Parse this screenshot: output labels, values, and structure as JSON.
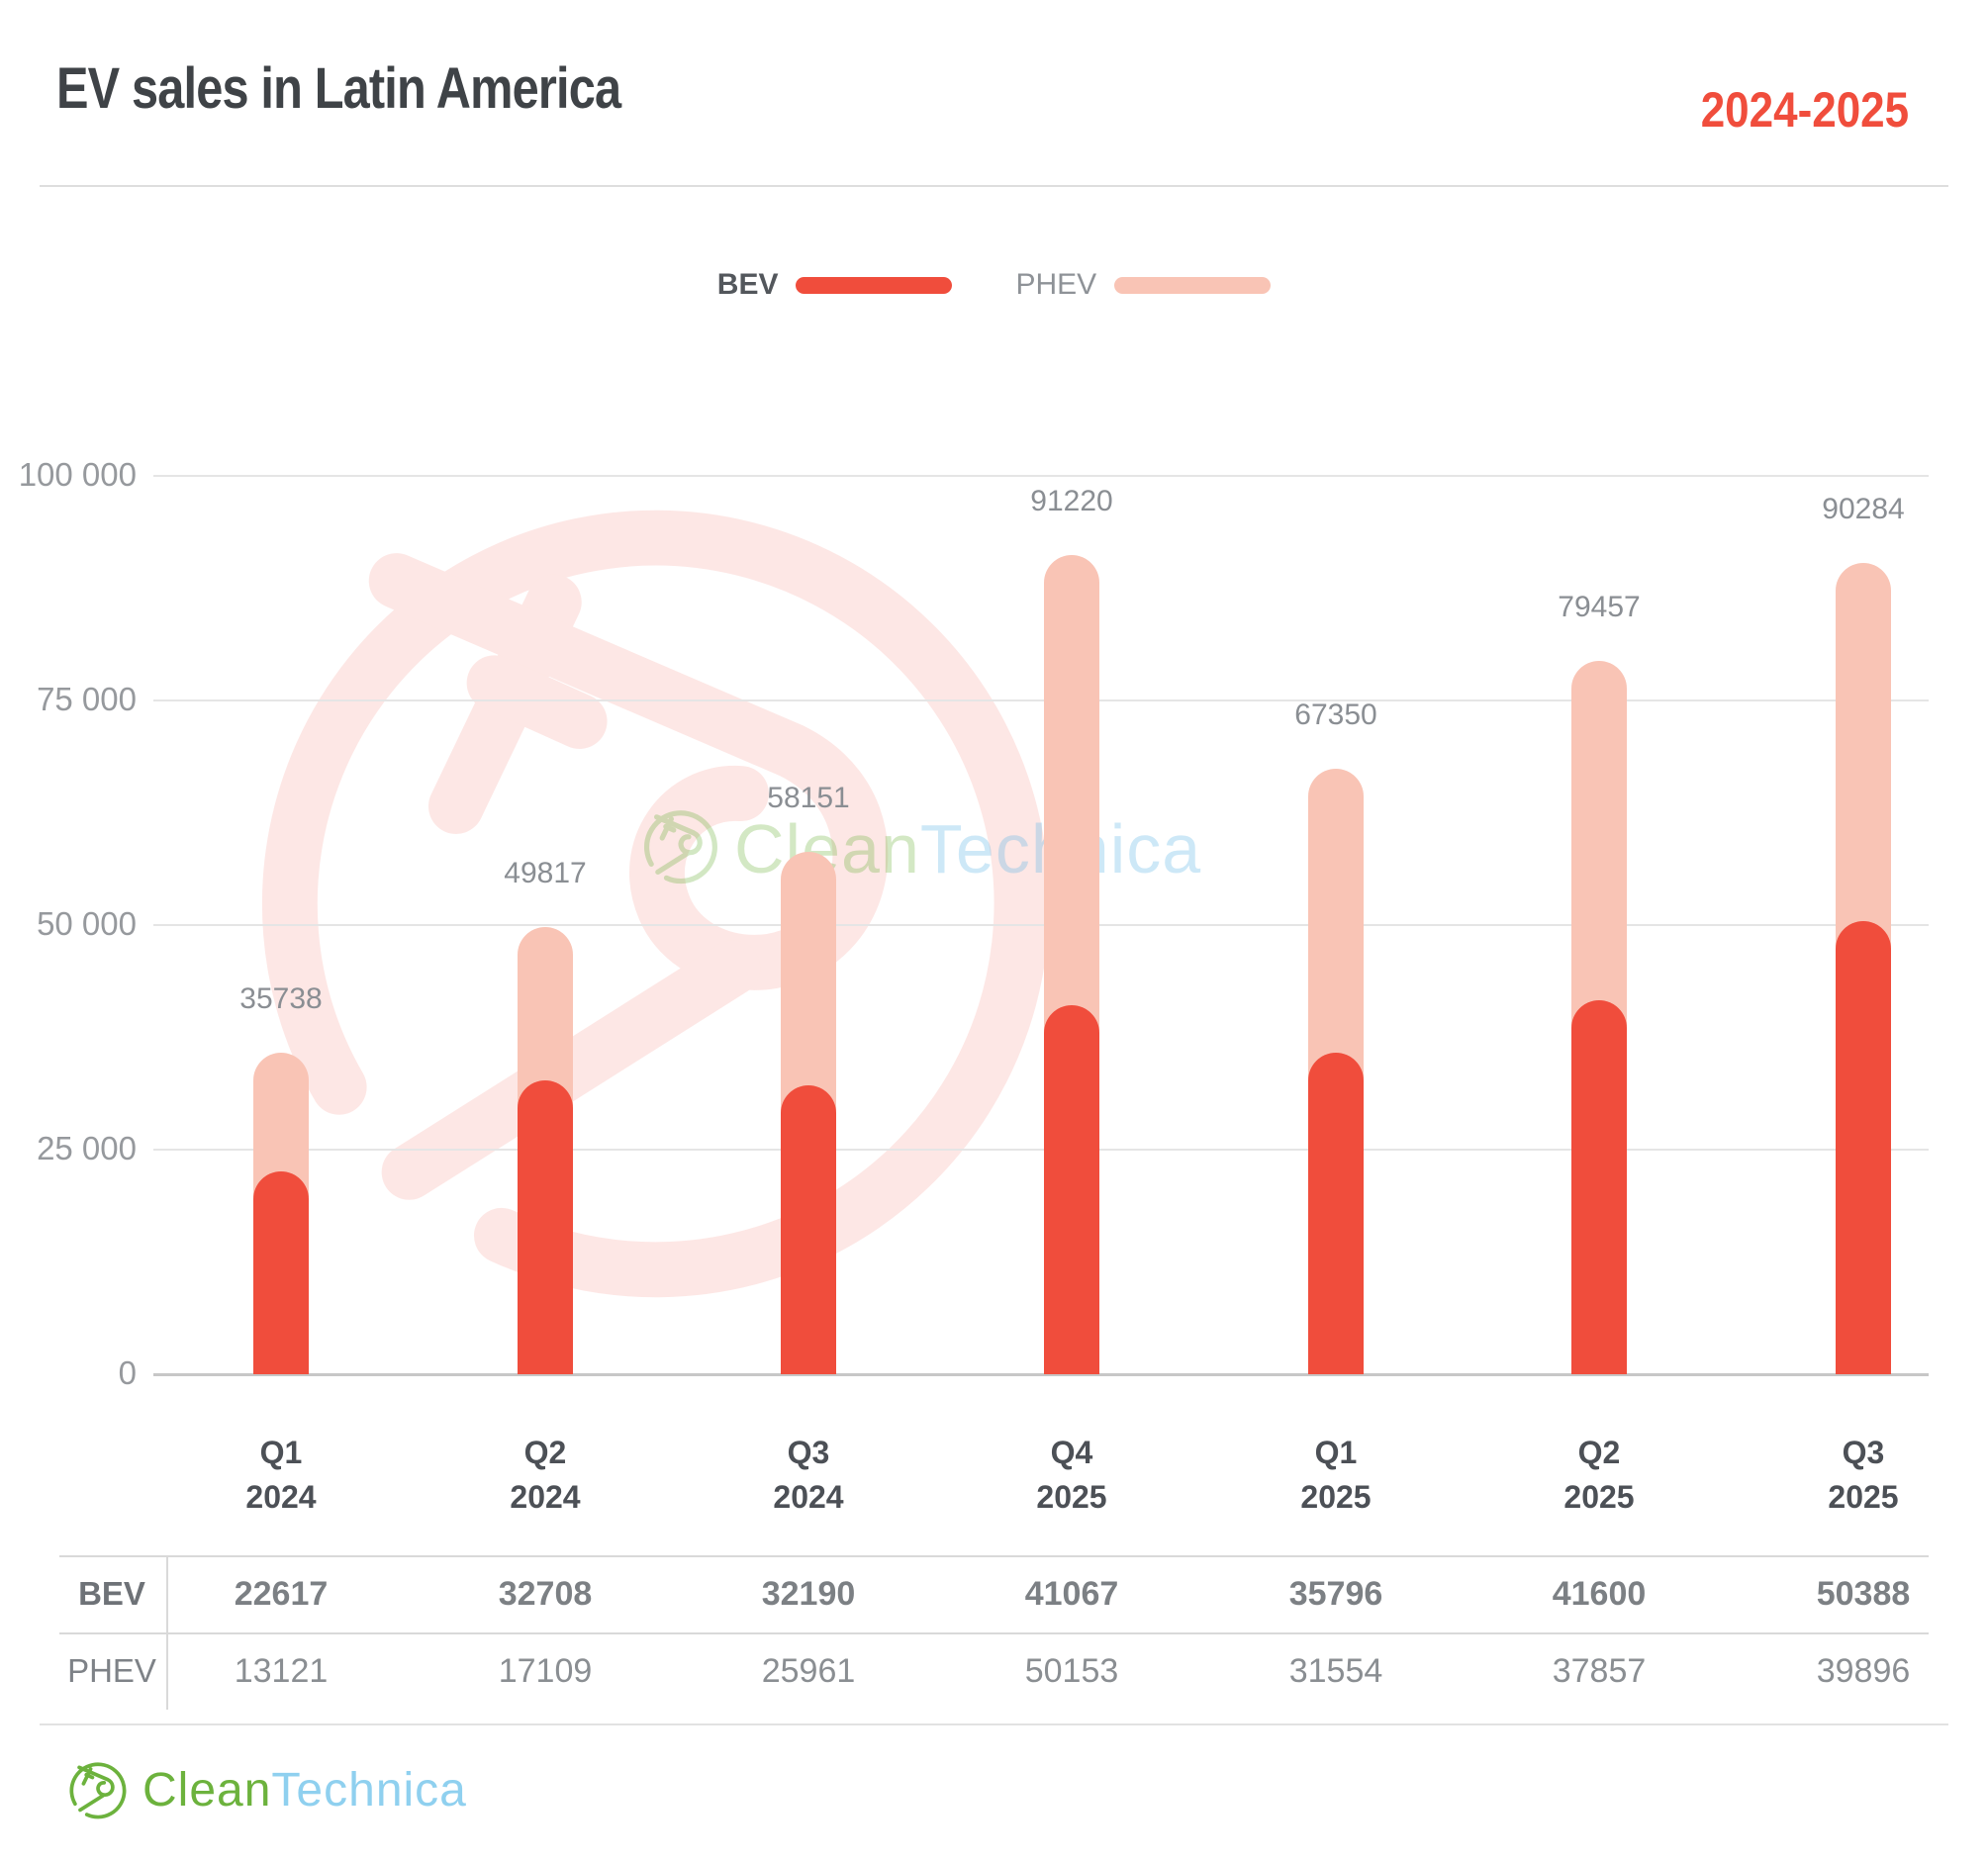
{
  "header": {
    "title": "EV sales in Latin America",
    "period": "2024-2025"
  },
  "legend": {
    "items": [
      {
        "label": "BEV",
        "color": "#F04D3C"
      },
      {
        "label": "PHEV",
        "color": "#F9C4B5"
      }
    ]
  },
  "chart_data": {
    "type": "bar",
    "stacked": true,
    "title": "EV sales in Latin America",
    "subtitle": "2024-2025",
    "categories": [
      "Q1 2024",
      "Q2 2024",
      "Q3 2024",
      "Q4 2025",
      "Q1 2025",
      "Q2 2025",
      "Q3 2025"
    ],
    "category_lines": [
      [
        "Q1",
        "2024"
      ],
      [
        "Q2",
        "2024"
      ],
      [
        "Q3",
        "2024"
      ],
      [
        "Q4",
        "2025"
      ],
      [
        "Q1",
        "2025"
      ],
      [
        "Q2",
        "2025"
      ],
      [
        "Q3",
        "2025"
      ]
    ],
    "series": [
      {
        "name": "BEV",
        "color": "#F04D3C",
        "values": [
          22617,
          32708,
          32190,
          41067,
          35796,
          41600,
          50388
        ]
      },
      {
        "name": "PHEV",
        "color": "#F9C4B5",
        "values": [
          13121,
          17109,
          25961,
          50153,
          31554,
          37857,
          39896
        ]
      }
    ],
    "totals": [
      35738,
      49817,
      58151,
      91220,
      67350,
      79457,
      90284
    ],
    "ylim": [
      0,
      100000
    ],
    "yticks": [
      {
        "value": 0,
        "label": "0"
      },
      {
        "value": 25000,
        "label": "25 000"
      },
      {
        "value": 50000,
        "label": "50 000"
      },
      {
        "value": 75000,
        "label": "75 000"
      },
      {
        "value": 100000,
        "label": "100 000"
      }
    ],
    "grid": true,
    "legend_position": "top"
  },
  "table": {
    "rows": [
      {
        "label": "BEV",
        "bold": true,
        "values": [
          "22617",
          "32708",
          "32190",
          "41067",
          "35796",
          "41600",
          "50388"
        ]
      },
      {
        "label": "PHEV",
        "bold": false,
        "values": [
          "13121",
          "17109",
          "25961",
          "50153",
          "31554",
          "37857",
          "39896"
        ]
      }
    ]
  },
  "watermark": {
    "brand_green": "Clean",
    "brand_blue": "Technica"
  },
  "footer": {
    "brand_green": "Clean",
    "brand_blue": "Technica"
  },
  "colors": {
    "accent_red": "#F04D3C",
    "accent_pink": "#F9C4B5",
    "brand_green": "#6CB23D",
    "brand_blue": "#8FD0EF"
  }
}
